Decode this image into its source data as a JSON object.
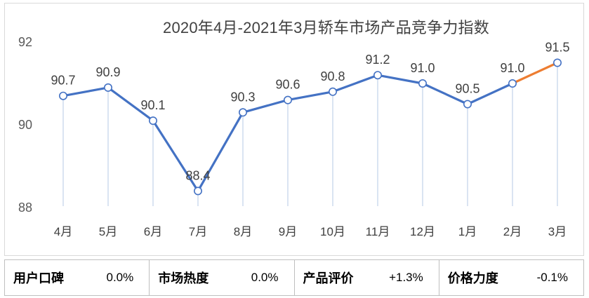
{
  "chart_data": {
    "type": "line",
    "title": "2020年4月-2021年3月轿车市场产品竞争力指数",
    "categories": [
      "4月",
      "5月",
      "6月",
      "7月",
      "8月",
      "9月",
      "10月",
      "11月",
      "12月",
      "1月",
      "2月",
      "3月"
    ],
    "series": [
      {
        "values": [
          90.7,
          90.9,
          90.1,
          88.4,
          90.3,
          90.6,
          90.8,
          91.2,
          91.0,
          90.5,
          91.0,
          91.5
        ]
      }
    ],
    "data_labels": [
      "90.7",
      "90.9",
      "90.1",
      "88.4",
      "90.3",
      "90.6",
      "90.8",
      "91.2",
      "91.0",
      "90.5",
      "91.0",
      "91.5"
    ],
    "y_ticks": [
      88,
      90,
      92
    ],
    "ylim": [
      88,
      92
    ],
    "grid": false,
    "line_color": "#4472C4",
    "highlight_color": "#ED7D31",
    "highlight_last_segment": true
  },
  "metrics": [
    {
      "label": "用户口碑",
      "value": "0.0%"
    },
    {
      "label": "市场热度",
      "value": "0.0%"
    },
    {
      "label": "产品评价",
      "value": "+1.3%"
    },
    {
      "label": "价格力度",
      "value": "-0.1%"
    }
  ]
}
